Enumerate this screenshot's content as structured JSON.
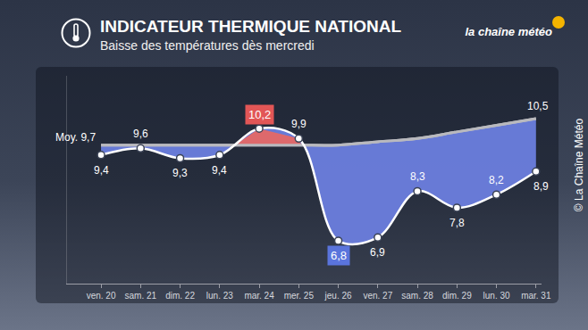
{
  "chart_data": {
    "type": "line",
    "title": "INDICATEUR THERMIQUE NATIONAL",
    "subtitle": "Baisse des températures dès mercredi",
    "annotations": [
      "la chaîne météo",
      "© La Chaîne Météo"
    ],
    "categories": [
      "ven. 20",
      "sam. 21",
      "dim. 22",
      "lun. 23",
      "mar. 24",
      "mer. 25",
      "jeu. 26",
      "ven. 27",
      "sam. 28",
      "dim. 29",
      "lun. 30",
      "mar. 31"
    ],
    "series": [
      {
        "name": "Moy.",
        "color": "#b9b9be",
        "values": [
          9.7,
          9.7,
          9.7,
          9.7,
          9.7,
          9.7,
          9.7,
          9.8,
          9.9,
          10.1,
          10.3,
          10.5
        ],
        "value_labels": [
          "Moy. 9,7",
          null,
          null,
          null,
          null,
          null,
          null,
          null,
          null,
          null,
          null,
          "10,5"
        ]
      },
      {
        "color": "#ffffff",
        "values": [
          9.4,
          9.6,
          9.3,
          9.4,
          10.2,
          9.9,
          6.8,
          6.9,
          8.3,
          7.8,
          8.2,
          8.9
        ],
        "value_labels": [
          "9,4",
          "9,6",
          "9,3",
          "9,4",
          "10,2",
          "9,9",
          "6,8",
          "6,9",
          "8,3",
          "7,8",
          "8,2",
          "8,9"
        ],
        "marker": "circle"
      }
    ],
    "ylim": [
      5.5,
      11.8
    ],
    "yticks": [],
    "grid": false,
    "data_labels": true,
    "tick_labels": "x"
  }
}
